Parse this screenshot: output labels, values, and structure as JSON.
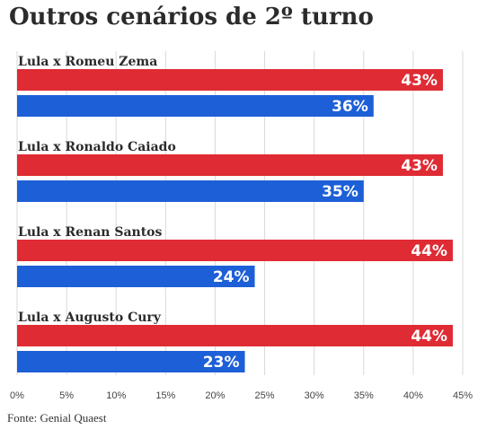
{
  "title": "Outros cenários de 2º turno",
  "source": "Fonte: Genial Quaest",
  "colors": {
    "lula": "#df2b34",
    "opponent": "#1d5fd6",
    "grid": "#d9d9d9",
    "text": "#2b2b2b"
  },
  "chart_data": {
    "type": "bar",
    "orientation": "horizontal",
    "title": "Outros cenários de 2º turno",
    "categories": [
      "Lula x Romeu Zema",
      "Lula x Ronaldo Caiado",
      "Lula x Renan Santos",
      "Lula x Augusto Cury"
    ],
    "series": [
      {
        "values": [
          43,
          43,
          44,
          44
        ],
        "labels": [
          "43%",
          "43%",
          "44%",
          "44%"
        ],
        "color": "#df2b34"
      },
      {
        "values": [
          36,
          35,
          24,
          23
        ],
        "labels": [
          "36%",
          "35%",
          "24%",
          "23%"
        ],
        "color": "#1d5fd6"
      }
    ],
    "xlim": [
      0,
      45
    ],
    "xticks": [
      0,
      5,
      10,
      15,
      20,
      25,
      30,
      35,
      40,
      45
    ],
    "xtick_labels": [
      "0%",
      "5%",
      "10%",
      "15%",
      "20%",
      "25%",
      "30%",
      "35%",
      "40%",
      "45%"
    ],
    "grid": true,
    "legend": "none"
  }
}
